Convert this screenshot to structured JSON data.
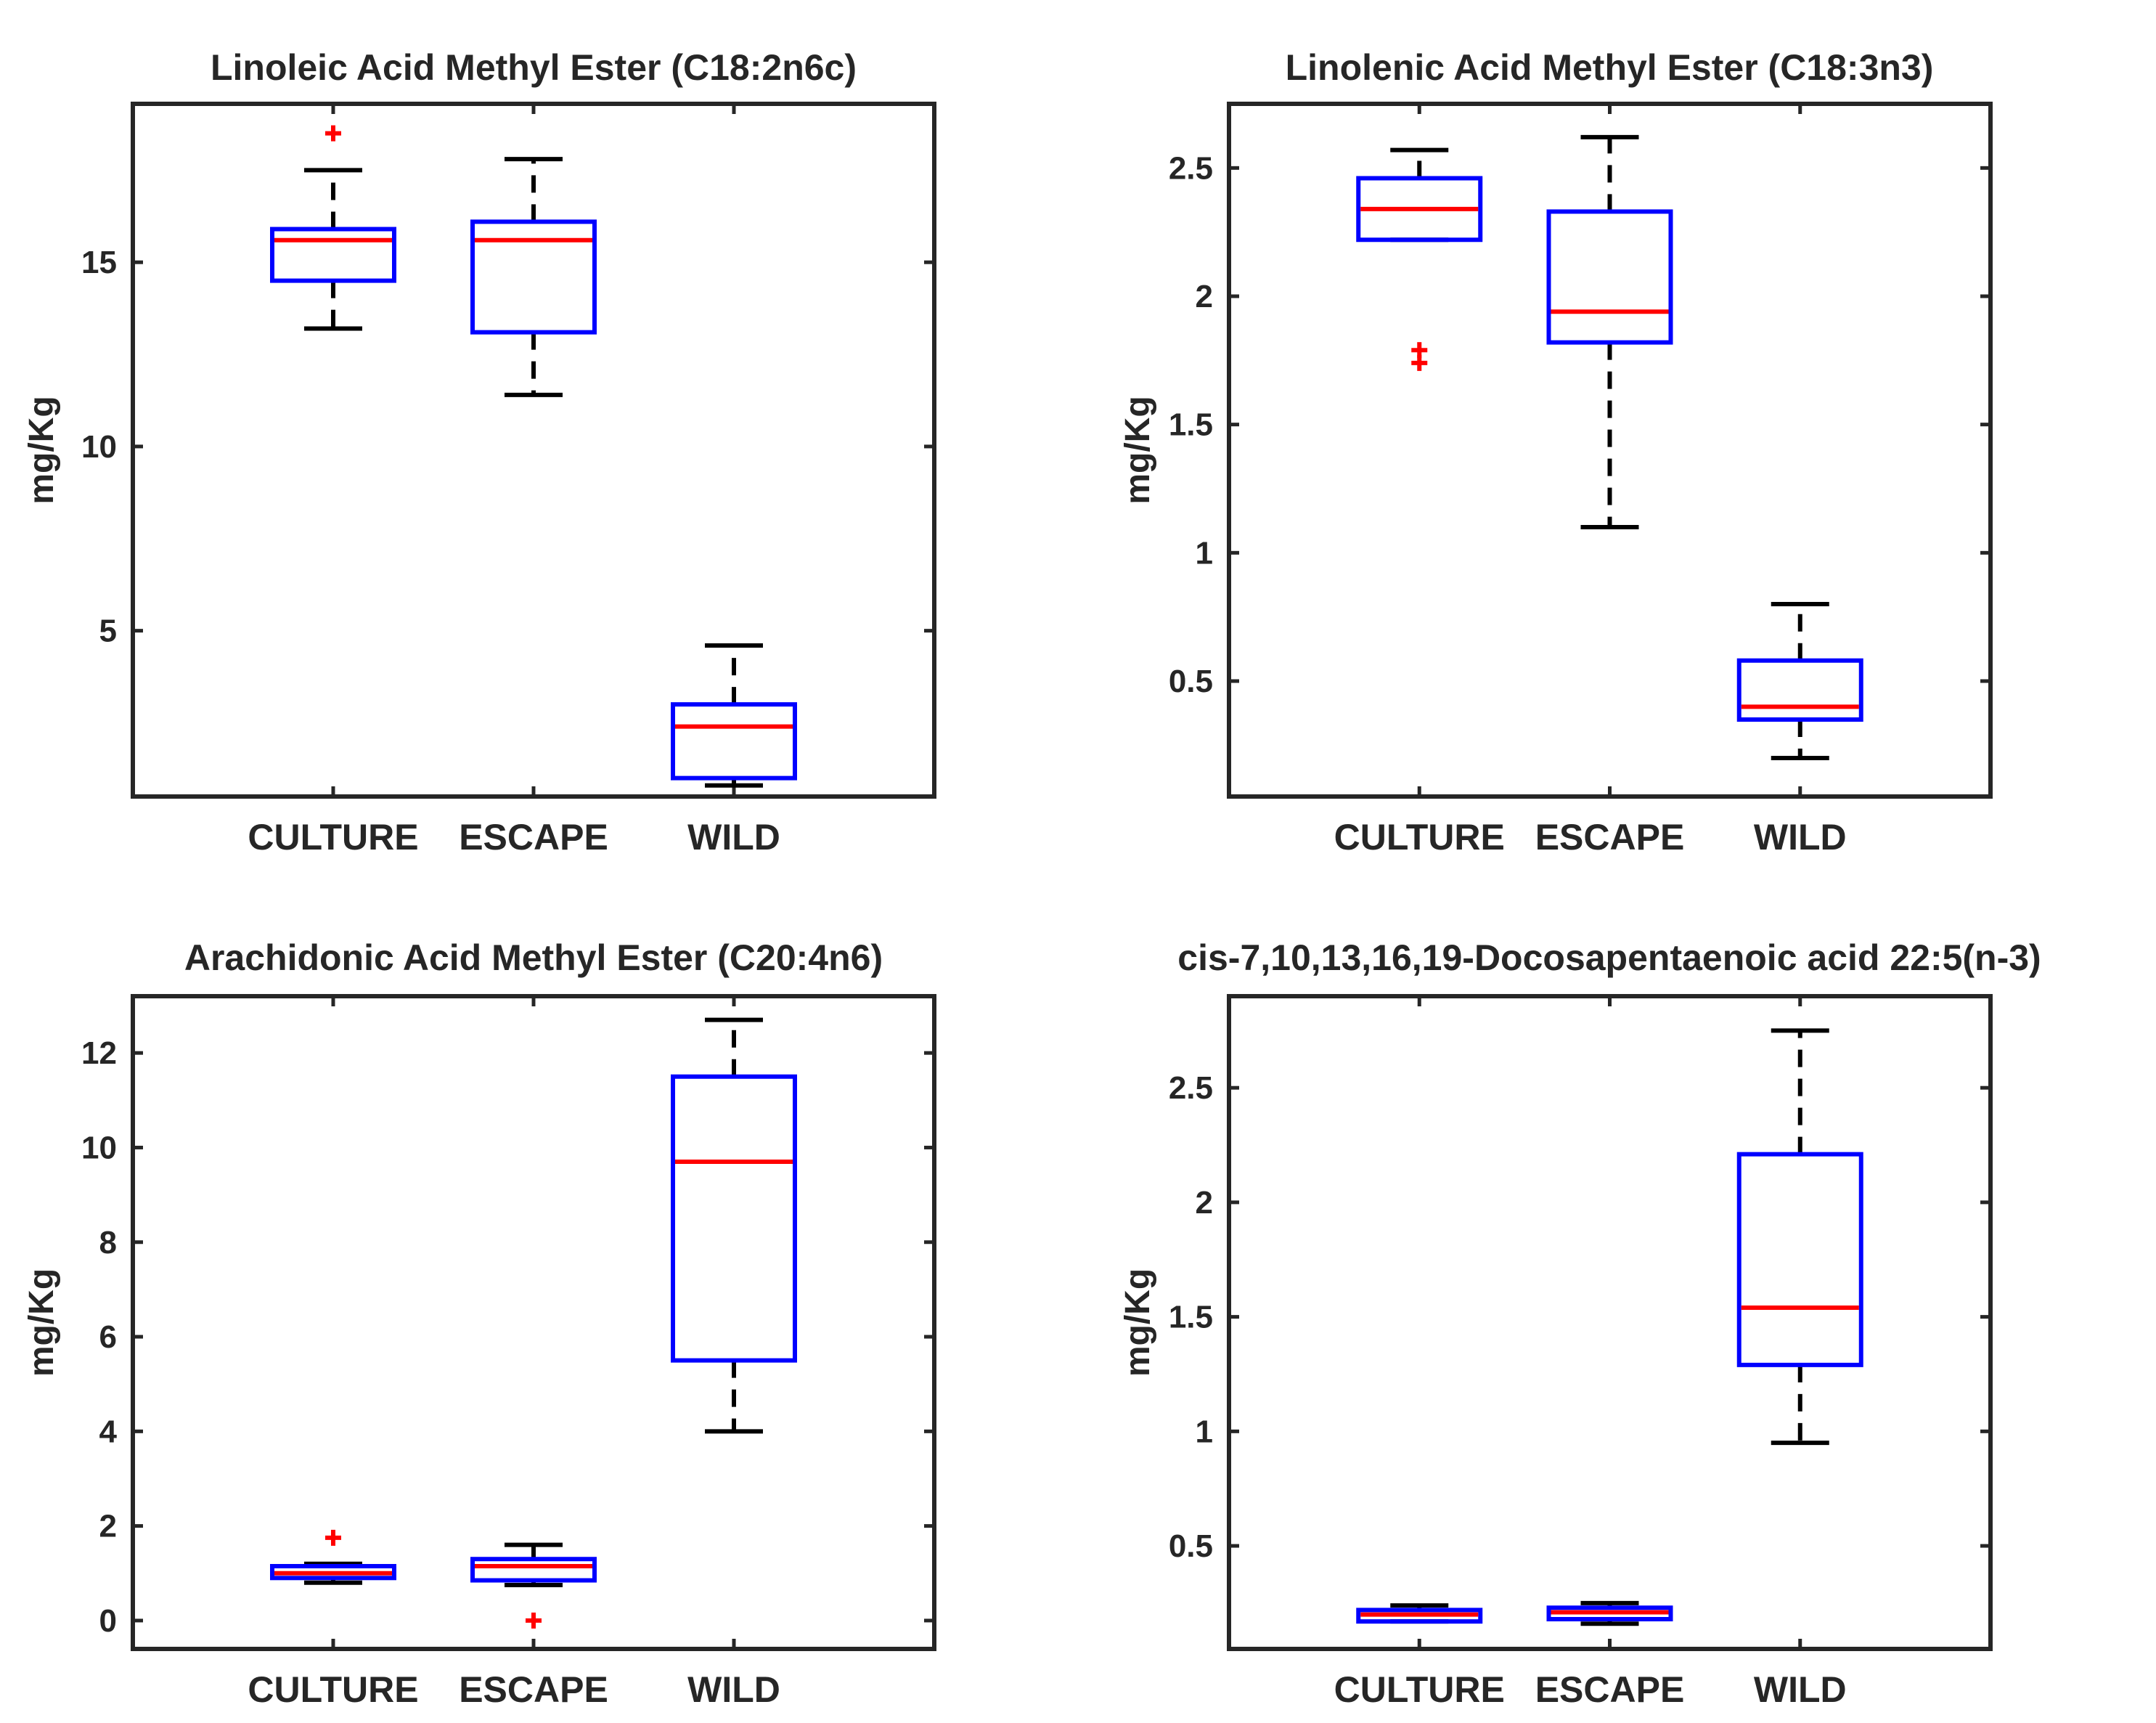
{
  "figure": {
    "colors": {
      "axes": "#262626",
      "box": "#0000ff",
      "median": "#ff0000",
      "outlier": "#ff0000",
      "whisker": "#000000"
    }
  },
  "chart_data": [
    {
      "type": "box",
      "title": "Linoleic Acid Methyl Ester (C18:2n6c)",
      "xlabel": "",
      "ylabel": "mg/Kg",
      "categories": [
        "CULTURE",
        "ESCAPE",
        "WILD"
      ],
      "ylim": [
        0.5,
        19.3
      ],
      "yticks": [
        5,
        10,
        15
      ],
      "ytick_labels": [
        "5",
        "10",
        "15"
      ],
      "boxes": [
        {
          "category": "CULTURE",
          "whisker_low": 13.2,
          "q1": 14.5,
          "median": 15.6,
          "q3": 15.9,
          "whisker_high": 17.5,
          "outliers": [
            18.5
          ]
        },
        {
          "category": "ESCAPE",
          "whisker_low": 11.4,
          "q1": 13.1,
          "median": 15.6,
          "q3": 16.1,
          "whisker_high": 17.8,
          "outliers": []
        },
        {
          "category": "WILD",
          "whisker_low": 0.8,
          "q1": 1.0,
          "median": 2.4,
          "q3": 3.0,
          "whisker_high": 4.6,
          "outliers": []
        }
      ]
    },
    {
      "type": "box",
      "title": "Linolenic Acid Methyl Ester (C18:3n3)",
      "xlabel": "",
      "ylabel": "mg/Kg",
      "categories": [
        "CULTURE",
        "ESCAPE",
        "WILD"
      ],
      "ylim": [
        0.05,
        2.75
      ],
      "yticks": [
        0.5,
        1,
        1.5,
        2,
        2.5
      ],
      "ytick_labels": [
        "0.5",
        "1",
        "1.5",
        "2",
        "2.5"
      ],
      "boxes": [
        {
          "category": "CULTURE",
          "whisker_low": 2.22,
          "q1": 2.22,
          "median": 2.34,
          "q3": 2.46,
          "whisker_high": 2.57,
          "outliers": [
            1.74,
            1.79
          ]
        },
        {
          "category": "ESCAPE",
          "whisker_low": 1.1,
          "q1": 1.82,
          "median": 1.94,
          "q3": 2.33,
          "whisker_high": 2.62,
          "outliers": []
        },
        {
          "category": "WILD",
          "whisker_low": 0.2,
          "q1": 0.35,
          "median": 0.4,
          "q3": 0.58,
          "whisker_high": 0.8,
          "outliers": []
        }
      ]
    },
    {
      "type": "box",
      "title": "Arachidonic Acid Methyl Ester (C20:4n6)",
      "xlabel": "",
      "ylabel": "mg/Kg",
      "categories": [
        "CULTURE",
        "ESCAPE",
        "WILD"
      ],
      "ylim": [
        -0.6,
        13.2
      ],
      "yticks": [
        0,
        2,
        4,
        6,
        8,
        10,
        12
      ],
      "ytick_labels": [
        "0",
        "2",
        "4",
        "6",
        "8",
        "10",
        "12"
      ],
      "boxes": [
        {
          "category": "CULTURE",
          "whisker_low": 0.8,
          "q1": 0.9,
          "median": 1.0,
          "q3": 1.15,
          "whisker_high": 1.2,
          "outliers": [
            1.75
          ]
        },
        {
          "category": "ESCAPE",
          "whisker_low": 0.75,
          "q1": 0.85,
          "median": 1.15,
          "q3": 1.3,
          "whisker_high": 1.6,
          "outliers": [
            0.0
          ]
        },
        {
          "category": "WILD",
          "whisker_low": 4.0,
          "q1": 5.5,
          "median": 9.7,
          "q3": 11.5,
          "whisker_high": 12.7,
          "outliers": []
        }
      ]
    },
    {
      "type": "box",
      "title": "cis-7,10,13,16,19-Docosapentaenoic acid 22:5(n-3)",
      "xlabel": "",
      "ylabel": "mg/Kg",
      "categories": [
        "CULTURE",
        "ESCAPE",
        "WILD"
      ],
      "ylim": [
        0.05,
        2.9
      ],
      "yticks": [
        0.5,
        1,
        1.5,
        2,
        2.5
      ],
      "ytick_labels": [
        "0.5",
        "1",
        "1.5",
        "2",
        "2.5"
      ],
      "boxes": [
        {
          "category": "CULTURE",
          "whisker_low": 0.17,
          "q1": 0.17,
          "median": 0.2,
          "q3": 0.22,
          "whisker_high": 0.24,
          "outliers": []
        },
        {
          "category": "ESCAPE",
          "whisker_low": 0.16,
          "q1": 0.18,
          "median": 0.21,
          "q3": 0.23,
          "whisker_high": 0.25,
          "outliers": []
        },
        {
          "category": "WILD",
          "whisker_low": 0.95,
          "q1": 1.29,
          "median": 1.54,
          "q3": 2.21,
          "whisker_high": 2.75,
          "outliers": []
        }
      ]
    }
  ]
}
